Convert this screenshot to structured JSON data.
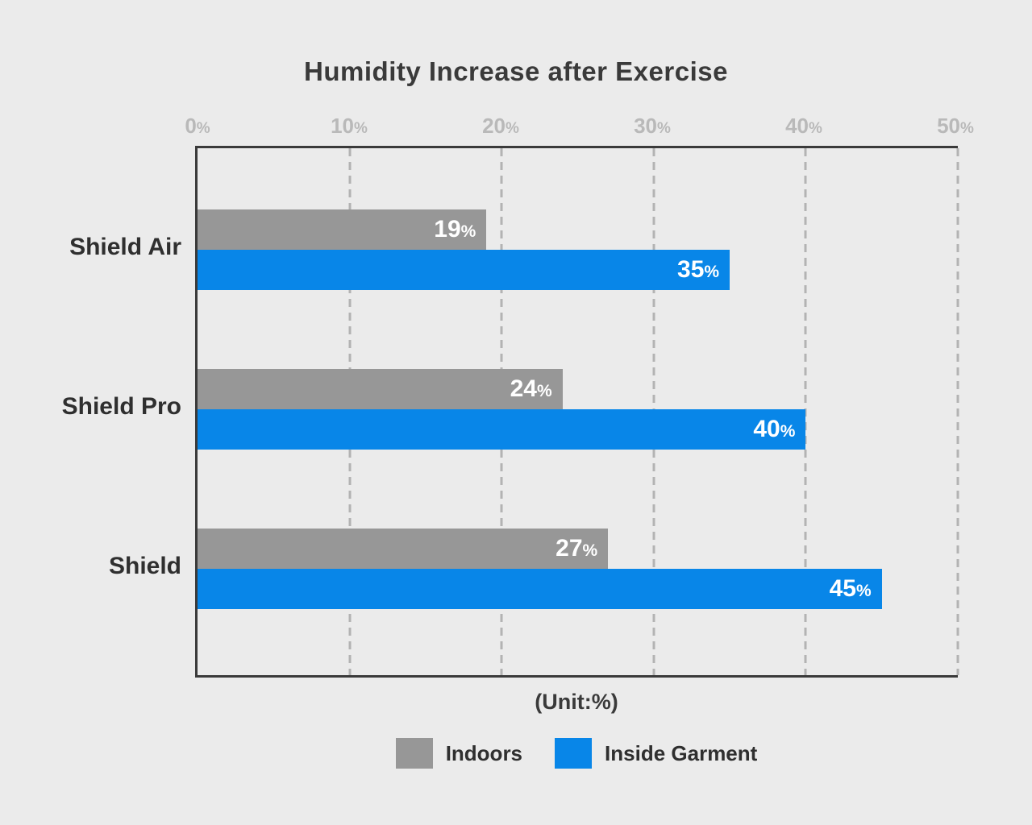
{
  "colors": {
    "background": "#ebebeb",
    "indoors": "#979797",
    "inside_garment": "#0886e8",
    "bar_label_text": "#ffffff"
  },
  "chart_data": {
    "type": "bar",
    "orientation": "horizontal",
    "title": "Humidity Increase after Exercise",
    "unit_label": "(Unit:%)",
    "categories": [
      "Shield Air",
      "Shield Pro",
      "Shield"
    ],
    "series": [
      {
        "name": "Indoors",
        "color": "#979797",
        "values": [
          19,
          24,
          27
        ]
      },
      {
        "name": "Inside Garment",
        "color": "#0886e8",
        "values": [
          35,
          40,
          45
        ]
      }
    ],
    "value_suffix": "%",
    "x_ticks": [
      0,
      10,
      20,
      30,
      40,
      50
    ],
    "xlim": [
      0,
      50
    ],
    "grid": "dashed-vertical",
    "legend_position": "bottom"
  }
}
